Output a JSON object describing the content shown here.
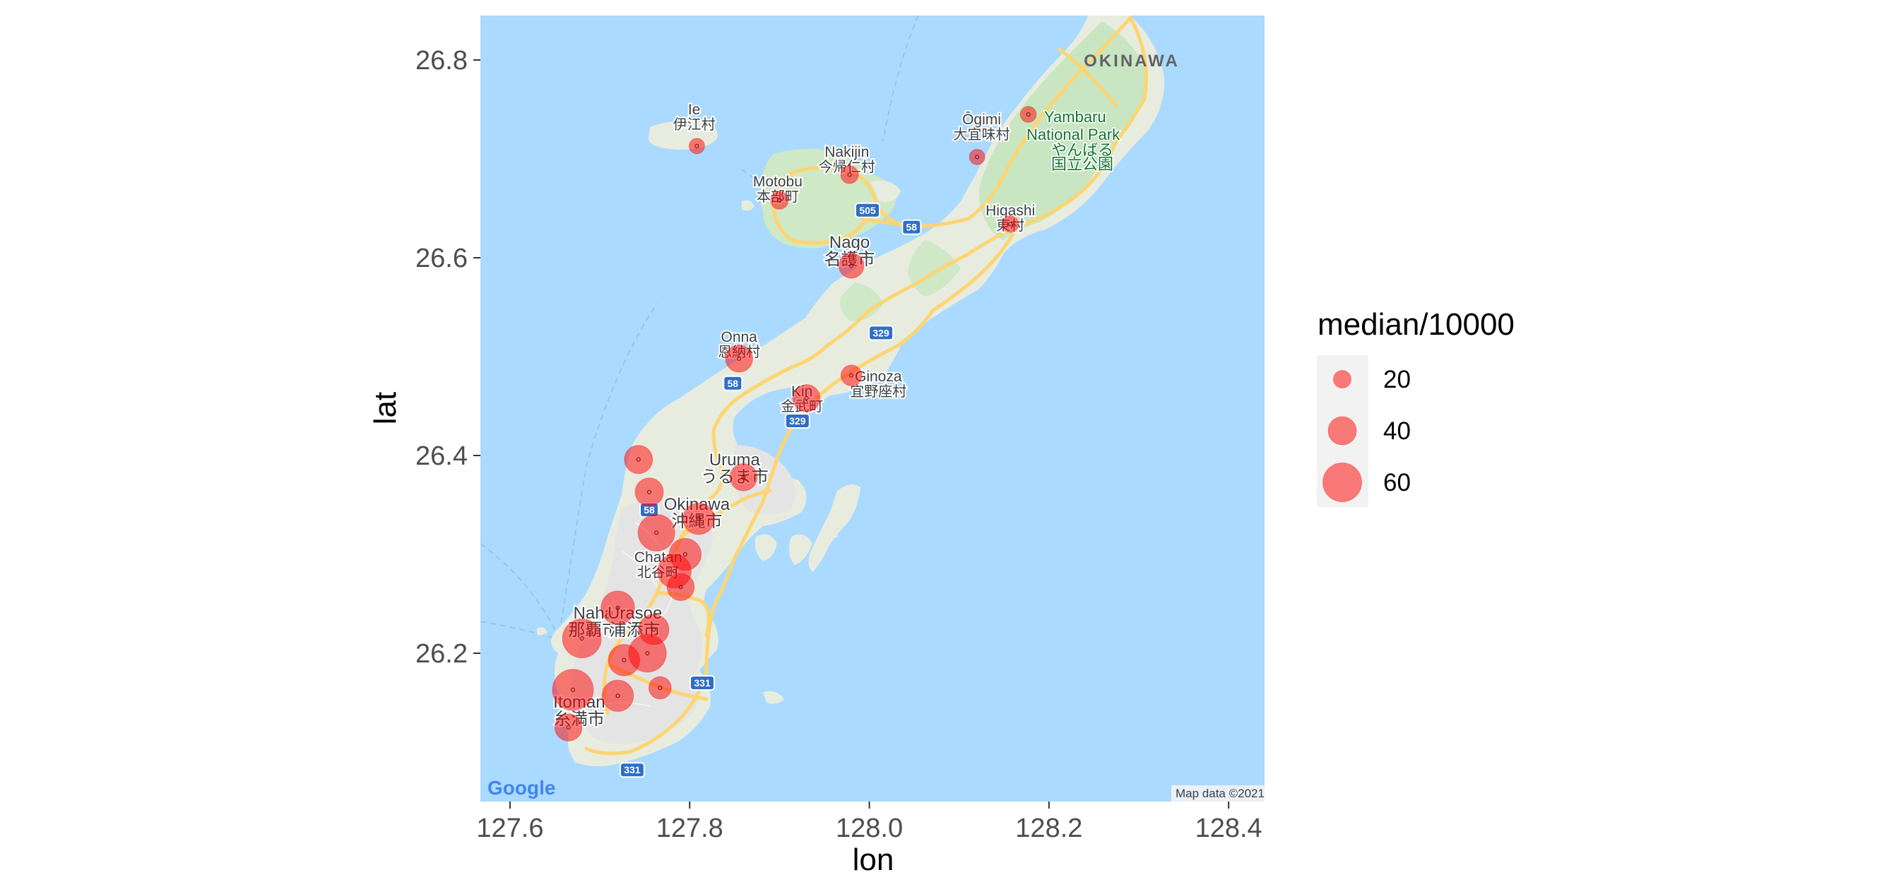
{
  "plot": {
    "xlabel": "lon",
    "ylabel": "lat",
    "xlim": [
      127.567,
      128.44
    ],
    "ylim": [
      26.05,
      26.845
    ],
    "map_extent": {
      "lon": [
        127.61,
        128.455
      ],
      "lat": [
        26.06,
        26.845
      ]
    },
    "x_ticks": [
      {
        "value": 127.6,
        "label": "127.6"
      },
      {
        "value": 127.8,
        "label": "127.8"
      },
      {
        "value": 128.0,
        "label": "128.0"
      },
      {
        "value": 128.2,
        "label": "128.2"
      },
      {
        "value": 128.4,
        "label": "128.4"
      }
    ],
    "y_ticks": [
      {
        "value": 26.2,
        "label": "26.2"
      },
      {
        "value": 26.4,
        "label": "26.4"
      },
      {
        "value": 26.6,
        "label": "26.6"
      },
      {
        "value": 26.8,
        "label": "26.8"
      }
    ],
    "colors": {
      "sea": "#aadaff",
      "land": "#e8ecdf",
      "urban": "#e6e6e6",
      "forest": "#c8e6c2",
      "road": "#fdd572",
      "point": "#ff0000",
      "point_alpha": 0.5
    }
  },
  "legend": {
    "title": "median/10000",
    "placement": "right",
    "entries": [
      {
        "value": 20,
        "label": "20"
      },
      {
        "value": 40,
        "label": "40"
      },
      {
        "value": 60,
        "label": "60"
      }
    ]
  },
  "basemap": {
    "provider_logo": "Google",
    "credit": "Map data ©2021",
    "region_label": "OKINAWA",
    "park_label_1": "Yambaru",
    "park_label_2": "National Park",
    "park_label_3": "やんばる",
    "park_label_4": "国立公園",
    "places": [
      {
        "lon": 127.805,
        "lat": 26.745,
        "en": "Ie",
        "ja": "伊江村"
      },
      {
        "lon": 127.975,
        "lat": 26.702,
        "en": "Nakijin",
        "ja": "今帰仁村"
      },
      {
        "lon": 127.898,
        "lat": 26.672,
        "en": "Motobu",
        "ja": "本部町"
      },
      {
        "lon": 128.125,
        "lat": 26.735,
        "en": "Ōgimi",
        "ja": "大宜味村"
      },
      {
        "lon": 128.157,
        "lat": 26.643,
        "en": "Higashi",
        "ja": "東村"
      },
      {
        "lon": 127.978,
        "lat": 26.61,
        "en": "Nago",
        "ja": "名護市"
      },
      {
        "lon": 127.855,
        "lat": 26.515,
        "en": "Onna",
        "ja": "恩納村"
      },
      {
        "lon": 127.925,
        "lat": 26.46,
        "en": "Kin",
        "ja": "金武町"
      },
      {
        "lon": 128.01,
        "lat": 26.475,
        "en": "Ginoza",
        "ja": "宜野座村"
      },
      {
        "lon": 127.85,
        "lat": 26.39,
        "en": "Uruma",
        "ja": "うるま市"
      },
      {
        "lon": 127.808,
        "lat": 26.345,
        "en": "Okinawa",
        "ja": "沖縄市"
      },
      {
        "lon": 127.765,
        "lat": 26.292,
        "en": "Chatan",
        "ja": "北谷町"
      },
      {
        "lon": 127.693,
        "lat": 26.235,
        "en": "Naha",
        "ja": "那覇市"
      },
      {
        "lon": 127.739,
        "lat": 26.235,
        "en": "Urasoe",
        "ja": "浦添市"
      },
      {
        "lon": 127.677,
        "lat": 26.145,
        "en": "Itoman",
        "ja": "糸満市"
      }
    ],
    "route_shields": [
      {
        "lon": 127.998,
        "lat": 26.648,
        "label": "505"
      },
      {
        "lon": 128.047,
        "lat": 26.631,
        "label": "58"
      },
      {
        "lon": 128.013,
        "lat": 26.524,
        "label": "329"
      },
      {
        "lon": 127.848,
        "lat": 26.473,
        "label": "58"
      },
      {
        "lon": 127.92,
        "lat": 26.435,
        "label": "329"
      },
      {
        "lon": 127.755,
        "lat": 26.345,
        "label": "58"
      },
      {
        "lon": 127.814,
        "lat": 26.17,
        "label": "331"
      },
      {
        "lon": 127.736,
        "lat": 26.082,
        "label": "331"
      }
    ]
  },
  "map_points": [
    {
      "lon": 127.808,
      "lat": 26.713,
      "median": 16
    },
    {
      "lon": 127.978,
      "lat": 26.684,
      "median": 20
    },
    {
      "lon": 127.9,
      "lat": 26.658,
      "median": 20
    },
    {
      "lon": 128.12,
      "lat": 26.702,
      "median": 16
    },
    {
      "lon": 128.177,
      "lat": 26.745,
      "median": 17
    },
    {
      "lon": 128.157,
      "lat": 26.634,
      "median": 18
    },
    {
      "lon": 127.98,
      "lat": 26.592,
      "median": 34
    },
    {
      "lon": 127.855,
      "lat": 26.498,
      "median": 38
    },
    {
      "lon": 127.93,
      "lat": 26.458,
      "median": 38
    },
    {
      "lon": 127.98,
      "lat": 26.481,
      "median": 26
    },
    {
      "lon": 127.86,
      "lat": 26.378,
      "median": 38
    },
    {
      "lon": 127.743,
      "lat": 26.396,
      "median": 40
    },
    {
      "lon": 127.755,
      "lat": 26.363,
      "median": 40
    },
    {
      "lon": 127.81,
      "lat": 26.336,
      "median": 46
    },
    {
      "lon": 127.763,
      "lat": 26.322,
      "median": 56
    },
    {
      "lon": 127.795,
      "lat": 26.3,
      "median": 47
    },
    {
      "lon": 127.783,
      "lat": 26.283,
      "median": 50
    },
    {
      "lon": 127.79,
      "lat": 26.267,
      "median": 38
    },
    {
      "lon": 127.72,
      "lat": 26.246,
      "median": 50
    },
    {
      "lon": 127.76,
      "lat": 26.224,
      "median": 44
    },
    {
      "lon": 127.68,
      "lat": 26.215,
      "median": 60
    },
    {
      "lon": 127.753,
      "lat": 26.2,
      "median": 58
    },
    {
      "lon": 127.727,
      "lat": 26.193,
      "median": 46
    },
    {
      "lon": 127.67,
      "lat": 26.163,
      "median": 64
    },
    {
      "lon": 127.72,
      "lat": 26.157,
      "median": 46
    },
    {
      "lon": 127.767,
      "lat": 26.165,
      "median": 29
    },
    {
      "lon": 127.665,
      "lat": 26.125,
      "median": 38
    }
  ]
}
